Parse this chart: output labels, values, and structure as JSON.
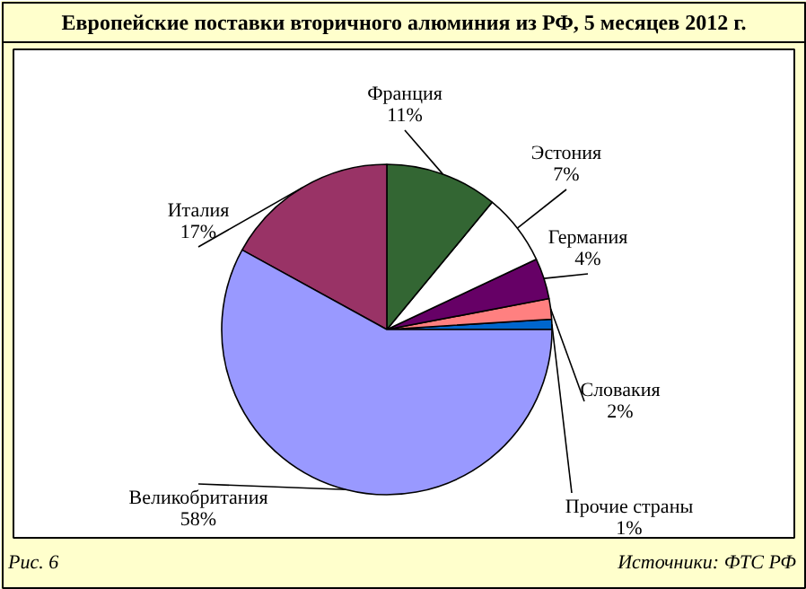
{
  "chart_data": {
    "type": "pie",
    "title": "Европейские поставки вторичного алюминия из РФ, 5 месяцев 2012 г.",
    "categories": [
      "Прочие страны",
      "Словакия",
      "Германия",
      "Эстония",
      "Франция",
      "Италия",
      "Великобритания"
    ],
    "values": [
      1,
      2,
      4,
      7,
      11,
      17,
      58
    ],
    "colors": [
      "#0066cc",
      "#ff8080",
      "#660066",
      "#ffffff",
      "#336633",
      "#993366",
      "#9999ff"
    ],
    "value_labels": [
      "1%",
      "2%",
      "4%",
      "7%",
      "11%",
      "17%",
      "58%"
    ],
    "annotations": [
      "Рис. 6",
      "Источники: ФТС РФ"
    ]
  }
}
